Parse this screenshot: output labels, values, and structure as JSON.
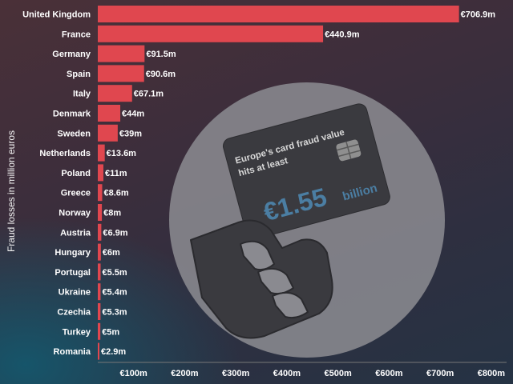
{
  "illustration": {
    "card_text_line1": "Europe's card fraud value",
    "card_text_line2": "hits at least",
    "amount": "€1.55",
    "unit": "billion",
    "icons": [
      "credit-card-chip-icon",
      "hand-holding-card-icon"
    ]
  },
  "colors": {
    "bar": "#e0474f",
    "text": "#ffffff",
    "amount_text": "#4b7ea3",
    "circle": "#8a8a90"
  },
  "chart_data": {
    "type": "bar",
    "orientation": "horizontal",
    "ylabel": "Fraud losses in million euros",
    "categories": [
      "United Kingdom",
      "France",
      "Germany",
      "Spain",
      "Italy",
      "Denmark",
      "Sweden",
      "Netherlands",
      "Poland",
      "Greece",
      "Norway",
      "Austria",
      "Hungary",
      "Portugal",
      "Ukraine",
      "Czechia",
      "Turkey",
      "Romania"
    ],
    "values": [
      706.9,
      440.9,
      91.5,
      90.6,
      67.1,
      44,
      39,
      13.6,
      11,
      8.6,
      8,
      6.9,
      6,
      5.5,
      5.4,
      5.3,
      5,
      2.9
    ],
    "value_labels": [
      "€706.9m",
      "€440.9m",
      "€91.5m",
      "€90.6m",
      "€67.1m",
      "€44m",
      "€39m",
      "€13.6m",
      "€11m",
      "€8.6m",
      "€8m",
      "€6.9m",
      "€6m",
      "€5.5m",
      "€5.4m",
      "€5.3m",
      "€5m",
      "€2.9m"
    ],
    "x_ticks": [
      "€100m",
      "€200m",
      "€300m",
      "€400m",
      "€500m",
      "€600m",
      "€700m",
      "€800m"
    ],
    "x_tick_values": [
      100,
      200,
      300,
      400,
      500,
      600,
      700,
      800
    ],
    "xlim": [
      0,
      800
    ],
    "grid": false,
    "legend": "none"
  }
}
